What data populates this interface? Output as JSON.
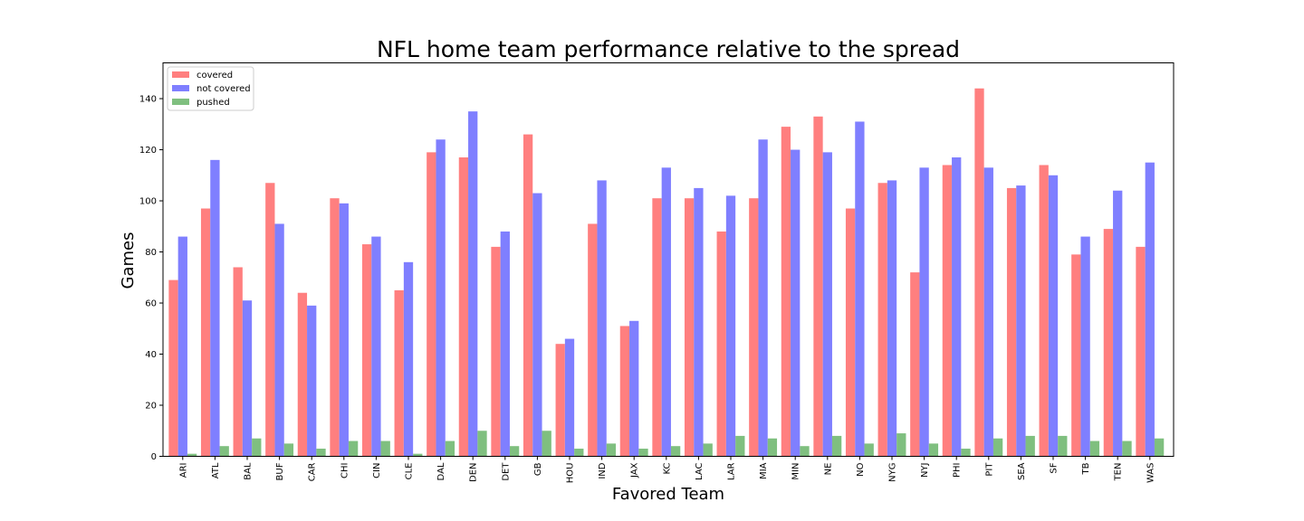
{
  "chart_data": {
    "type": "bar",
    "title": "NFL home team performance relative to the spread",
    "xlabel": "Favored Team",
    "ylabel": "Games",
    "ylim": [
      0,
      154
    ],
    "yticks": [
      0,
      20,
      40,
      60,
      80,
      100,
      120,
      140
    ],
    "legend_position": "top-left",
    "categories": [
      "ARI",
      "ATL",
      "BAL",
      "BUF",
      "CAR",
      "CHI",
      "CIN",
      "CLE",
      "DAL",
      "DEN",
      "DET",
      "GB",
      "HOU",
      "IND",
      "JAX",
      "KC",
      "LAC",
      "LAR",
      "MIA",
      "MIN",
      "NE",
      "NO",
      "NYG",
      "NYJ",
      "PHI",
      "PIT",
      "SEA",
      "SF",
      "TB",
      "TEN",
      "WAS"
    ],
    "series": [
      {
        "name": "covered",
        "color": "#ff7f7f",
        "values": [
          69,
          97,
          74,
          107,
          64,
          101,
          83,
          65,
          119,
          117,
          82,
          126,
          44,
          91,
          51,
          101,
          101,
          88,
          101,
          129,
          133,
          97,
          107,
          72,
          114,
          144,
          105,
          114,
          79,
          89,
          82
        ]
      },
      {
        "name": "not covered",
        "color": "#7f7fff",
        "values": [
          86,
          116,
          61,
          91,
          59,
          99,
          86,
          76,
          124,
          135,
          88,
          103,
          46,
          108,
          53,
          113,
          105,
          102,
          124,
          120,
          119,
          131,
          108,
          113,
          117,
          113,
          106,
          110,
          86,
          104,
          115
        ]
      },
      {
        "name": "pushed",
        "color": "#7fbf7f",
        "values": [
          1,
          4,
          7,
          5,
          3,
          6,
          6,
          1,
          6,
          10,
          4,
          10,
          3,
          5,
          3,
          4,
          5,
          8,
          7,
          4,
          8,
          5,
          9,
          5,
          3,
          7,
          8,
          8,
          6,
          6,
          7
        ]
      }
    ]
  }
}
